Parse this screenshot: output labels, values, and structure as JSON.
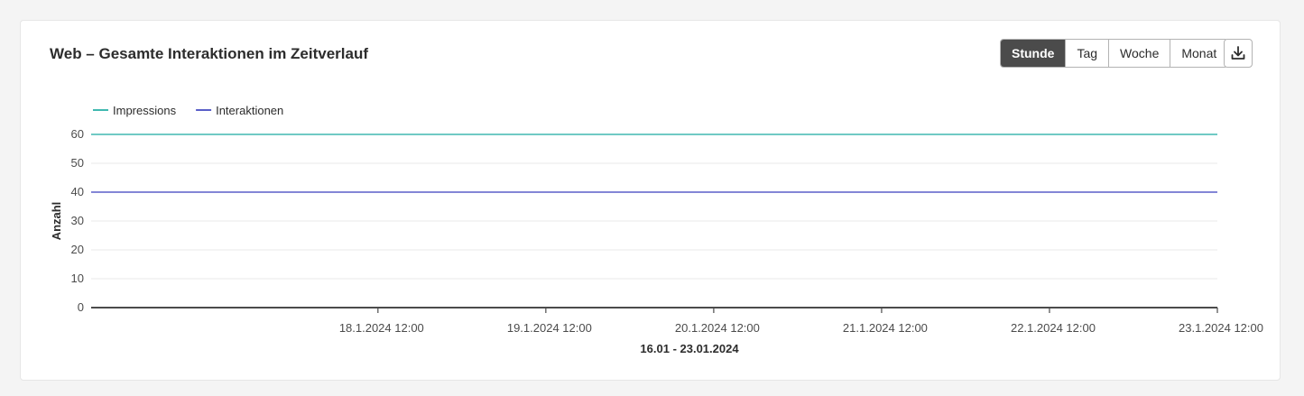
{
  "card": {
    "title": "Web – Gesamte Interaktionen im Zeitverlauf"
  },
  "granularity": {
    "options": [
      "Stunde",
      "Tag",
      "Woche",
      "Monat"
    ],
    "selected": "Stunde"
  },
  "download": {
    "icon": "download-icon"
  },
  "colors": {
    "impressions": "#40b9b0",
    "interaktionen": "#5a5fc8",
    "axis": "#4b4b4b",
    "grid": "#e8e8e8",
    "active_segment": "#4b4b4b"
  },
  "chart_data": {
    "type": "line",
    "title": "",
    "xlabel": "16.01 - 23.01.2024",
    "ylabel": "Anzahl",
    "ylim": [
      0,
      60
    ],
    "yticks": [
      0,
      10,
      20,
      30,
      40,
      50,
      60
    ],
    "xlim": [
      "16.1.2024 19:00",
      "23.1.2024 12:00"
    ],
    "x": [
      "16.1.2024 19:00",
      "23.1.2024 12:00"
    ],
    "xticks": [
      "18.1.2024 12:00",
      "19.1.2024 12:00",
      "20.1.2024 12:00",
      "21.1.2024 12:00",
      "22.1.2024 12:00",
      "23.1.2024 12:00"
    ],
    "grid": true,
    "legend_position": "top-left",
    "series": [
      {
        "name": "Impressions",
        "values": [
          60,
          60
        ]
      },
      {
        "name": "Interaktionen",
        "values": [
          40,
          40
        ]
      }
    ]
  }
}
